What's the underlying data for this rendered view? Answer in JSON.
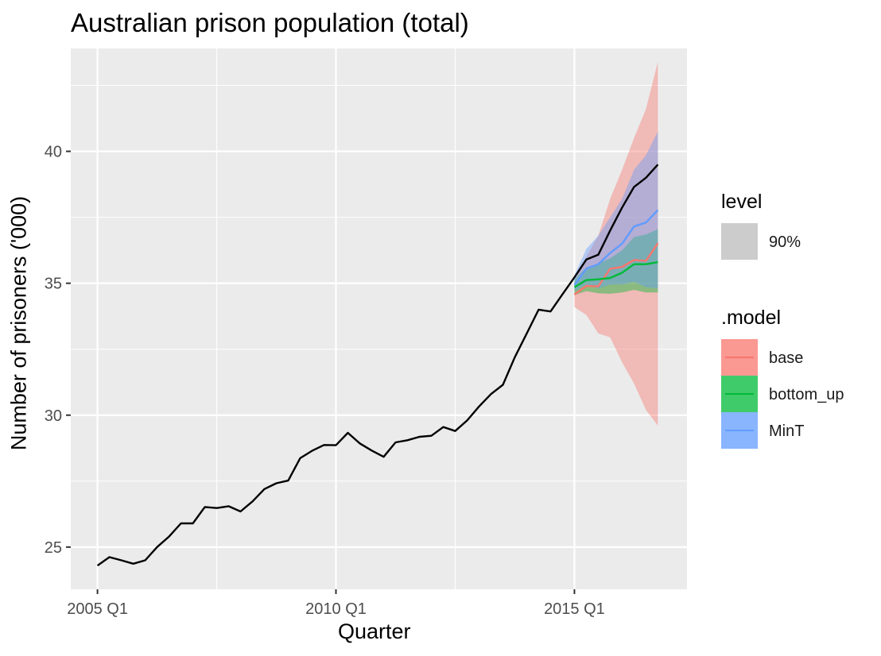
{
  "chart_data": {
    "type": "line",
    "title": "Australian prison population (total)",
    "xlabel": "Quarter",
    "ylabel": "Number of prisoners ('000)",
    "x_ticks": [
      {
        "value": 2005.0,
        "label": "2005 Q1"
      },
      {
        "value": 2010.0,
        "label": "2010 Q1"
      },
      {
        "value": 2015.0,
        "label": "2015 Q1"
      }
    ],
    "y_ticks": [
      25,
      30,
      35,
      40
    ],
    "xlim": [
      2004.44,
      2017.36
    ],
    "ylim": [
      23.4,
      43.9
    ],
    "grid": true,
    "legend_placement": "right",
    "legend": {
      "level_title": "level",
      "level_label": "90%",
      "level_color": "#cccccc",
      "model_title": ".model",
      "models": [
        {
          "name": "base",
          "color": "#F8766D"
        },
        {
          "name": "bottom_up",
          "color": "#00BA38"
        },
        {
          "name": "MinT",
          "color": "#619CFF"
        }
      ]
    },
    "actual": {
      "color": "#000000",
      "x": [
        2005.0,
        2005.25,
        2005.5,
        2005.75,
        2006.0,
        2006.25,
        2006.5,
        2006.75,
        2007.0,
        2007.25,
        2007.5,
        2007.75,
        2008.0,
        2008.25,
        2008.5,
        2008.75,
        2009.0,
        2009.25,
        2009.5,
        2009.75,
        2010.0,
        2010.25,
        2010.5,
        2010.75,
        2011.0,
        2011.25,
        2011.5,
        2011.75,
        2012.0,
        2012.25,
        2012.5,
        2012.75,
        2013.0,
        2013.25,
        2013.5,
        2013.75,
        2014.0,
        2014.25,
        2014.5,
        2014.75,
        2015.0,
        2015.25,
        2015.5,
        2015.75,
        2016.0,
        2016.25,
        2016.5,
        2016.75
      ],
      "y": [
        24.3,
        24.62,
        24.5,
        24.37,
        24.5,
        25.0,
        25.4,
        25.9,
        25.9,
        26.52,
        26.48,
        26.55,
        26.35,
        26.73,
        27.2,
        27.42,
        27.52,
        28.37,
        28.65,
        28.87,
        28.86,
        29.33,
        28.93,
        28.66,
        28.42,
        28.97,
        29.05,
        29.18,
        29.22,
        29.55,
        29.4,
        29.8,
        30.33,
        30.8,
        31.15,
        32.2,
        33.1,
        34.0,
        33.93,
        34.58,
        35.22,
        35.9,
        36.08,
        37.0,
        37.87,
        38.65,
        39.0,
        39.5
      ]
    },
    "forecast": {
      "x": [
        2015.0,
        2015.25,
        2015.5,
        2015.75,
        2016.0,
        2016.25,
        2016.5,
        2016.75
      ],
      "series": [
        {
          "name": "base",
          "color": "#F8766D",
          "mean": [
            34.57,
            34.9,
            34.88,
            35.55,
            35.62,
            35.88,
            35.85,
            36.52
          ],
          "lo": [
            34.1,
            33.8,
            33.1,
            32.95,
            32.0,
            31.2,
            30.2,
            29.6
          ],
          "hi": [
            35.05,
            36.0,
            36.8,
            38.2,
            39.3,
            40.5,
            41.6,
            43.4
          ]
        },
        {
          "name": "bottom_up",
          "color": "#00BA38",
          "mean": [
            34.85,
            35.12,
            35.15,
            35.2,
            35.4,
            35.72,
            35.72,
            35.8
          ],
          "lo": [
            34.55,
            34.7,
            34.62,
            34.6,
            34.65,
            34.75,
            34.65,
            34.65
          ],
          "hi": [
            35.15,
            35.6,
            35.75,
            35.95,
            36.25,
            36.75,
            36.85,
            37.05
          ]
        },
        {
          "name": "MinT",
          "color": "#619CFF",
          "mean": [
            34.93,
            35.55,
            35.72,
            36.15,
            36.5,
            37.15,
            37.3,
            37.77
          ],
          "lo": [
            34.7,
            34.95,
            34.8,
            34.95,
            34.95,
            35.05,
            34.85,
            34.8
          ],
          "hi": [
            35.3,
            36.3,
            36.8,
            37.5,
            38.2,
            39.3,
            39.85,
            40.75
          ]
        }
      ]
    }
  }
}
